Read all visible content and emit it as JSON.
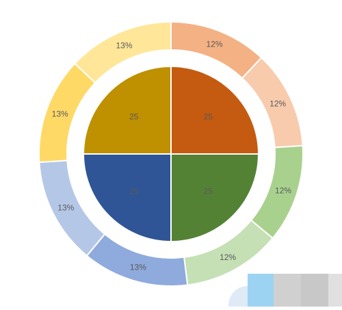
{
  "chart_data": {
    "type": "pie",
    "inner_series": {
      "values": [
        25,
        25,
        25,
        25
      ],
      "labels": [
        "25",
        "25",
        "25",
        "25"
      ],
      "colors": [
        "#C55A11",
        "#548235",
        "#2F5597",
        "#BF9000"
      ]
    },
    "outer_series": {
      "values": [
        12,
        12,
        12,
        12,
        13,
        13,
        13,
        13
      ],
      "labels": [
        "12%",
        "12%",
        "12%",
        "12%",
        "13%",
        "13%",
        "13%",
        "13%"
      ],
      "colors": [
        "#F4B183",
        "#F8CBAD",
        "#A9D18E",
        "#C5E0B4",
        "#8FAADC",
        "#B4C7E7",
        "#FFD966",
        "#FFE699"
      ]
    },
    "title": "",
    "legend": "none"
  },
  "footer_swatches": [
    "#DEEBF7",
    "#9DD3F2",
    "#D0D0D0",
    "#C8C8C8",
    "#E0E0E0"
  ]
}
